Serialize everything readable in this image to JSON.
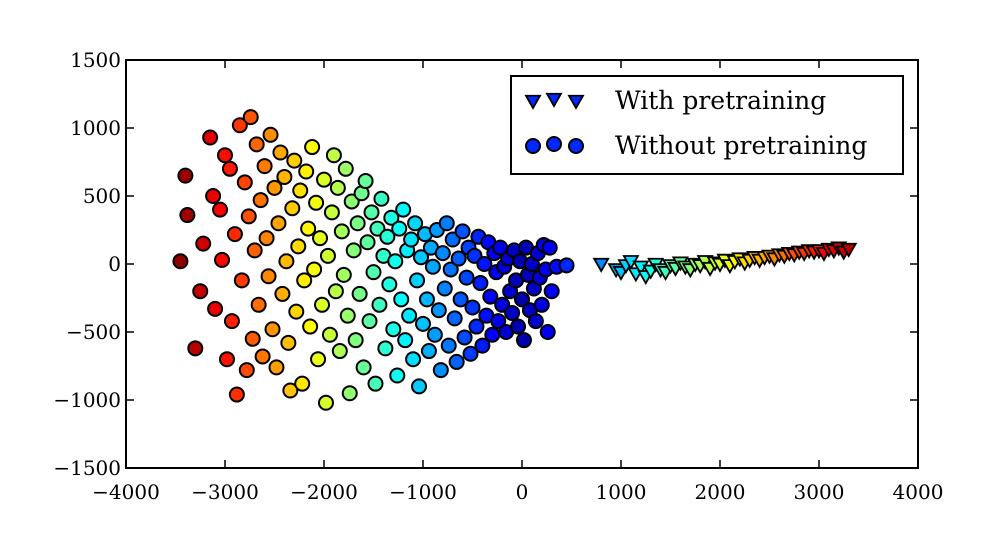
{
  "chart_data": {
    "type": "scatter",
    "title": "",
    "xlabel": "",
    "ylabel": "",
    "xlim": [
      -4000,
      4000
    ],
    "ylim": [
      -1500,
      1500
    ],
    "xticks": [
      -4000,
      -3000,
      -2000,
      -1000,
      0,
      1000,
      2000,
      3000,
      4000
    ],
    "yticks": [
      -1500,
      -1000,
      -500,
      0,
      500,
      1000,
      1500
    ],
    "xtick_labels": [
      "−4000",
      "−3000",
      "−2000",
      "−1000",
      "0",
      "1000",
      "2000",
      "3000",
      "4000"
    ],
    "ytick_labels": [
      "−1500",
      "−1000",
      "−500",
      "0",
      "500",
      "1000",
      "1500"
    ],
    "grid": false,
    "legend_position": "top-right",
    "colormap": "jet",
    "series": [
      {
        "name": "With pretraining",
        "marker": "triangle-down",
        "points": [
          [
            800,
            0
          ],
          [
            950,
            -40
          ],
          [
            1000,
            -60
          ],
          [
            1050,
            -10
          ],
          [
            1100,
            20
          ],
          [
            1150,
            -70
          ],
          [
            1200,
            -20
          ],
          [
            1250,
            -90
          ],
          [
            1300,
            -50
          ],
          [
            1350,
            0
          ],
          [
            1400,
            -40
          ],
          [
            1450,
            -60
          ],
          [
            1500,
            -10
          ],
          [
            1550,
            -30
          ],
          [
            1600,
            10
          ],
          [
            1650,
            -20
          ],
          [
            1700,
            -40
          ],
          [
            1750,
            0
          ],
          [
            1800,
            -10
          ],
          [
            1850,
            20
          ],
          [
            1900,
            -30
          ],
          [
            1950,
            10
          ],
          [
            2000,
            0
          ],
          [
            2050,
            30
          ],
          [
            2100,
            -10
          ],
          [
            2150,
            20
          ],
          [
            2200,
            40
          ],
          [
            2250,
            10
          ],
          [
            2300,
            30
          ],
          [
            2350,
            50
          ],
          [
            2400,
            30
          ],
          [
            2450,
            50
          ],
          [
            2500,
            60
          ],
          [
            2550,
            40
          ],
          [
            2600,
            70
          ],
          [
            2650,
            60
          ],
          [
            2700,
            80
          ],
          [
            2750,
            70
          ],
          [
            2800,
            90
          ],
          [
            2850,
            80
          ],
          [
            2900,
            100
          ],
          [
            2950,
            90
          ],
          [
            3000,
            100
          ],
          [
            3050,
            80
          ],
          [
            3100,
            110
          ],
          [
            3150,
            100
          ],
          [
            3200,
            120
          ],
          [
            3250,
            90
          ],
          [
            3300,
            110
          ]
        ]
      },
      {
        "name": "Without pretraining",
        "marker": "circle",
        "points": [
          [
            -3450,
            20
          ],
          [
            -3400,
            650
          ],
          [
            -3380,
            360
          ],
          [
            -3300,
            -620
          ],
          [
            -3250,
            -200
          ],
          [
            -3220,
            150
          ],
          [
            -3150,
            930
          ],
          [
            -3120,
            500
          ],
          [
            -3100,
            -330
          ],
          [
            -3050,
            400
          ],
          [
            -3030,
            30
          ],
          [
            -3000,
            800
          ],
          [
            -2980,
            -700
          ],
          [
            -2950,
            700
          ],
          [
            -2930,
            -420
          ],
          [
            -2900,
            220
          ],
          [
            -2880,
            -960
          ],
          [
            -2850,
            1020
          ],
          [
            -2830,
            -120
          ],
          [
            -2800,
            600
          ],
          [
            -2780,
            -780
          ],
          [
            -2760,
            350
          ],
          [
            -2740,
            1080
          ],
          [
            -2720,
            -550
          ],
          [
            -2700,
            100
          ],
          [
            -2680,
            880
          ],
          [
            -2660,
            -300
          ],
          [
            -2640,
            470
          ],
          [
            -2620,
            -680
          ],
          [
            -2600,
            720
          ],
          [
            -2580,
            190
          ],
          [
            -2560,
            -90
          ],
          [
            -2540,
            950
          ],
          [
            -2520,
            -480
          ],
          [
            -2500,
            560
          ],
          [
            -2480,
            -760
          ],
          [
            -2460,
            300
          ],
          [
            -2440,
            820
          ],
          [
            -2420,
            -220
          ],
          [
            -2400,
            640
          ],
          [
            -2380,
            20
          ],
          [
            -2360,
            -580
          ],
          [
            -2340,
            -930
          ],
          [
            -2320,
            410
          ],
          [
            -2300,
            760
          ],
          [
            -2280,
            -350
          ],
          [
            -2260,
            130
          ],
          [
            -2240,
            540
          ],
          [
            -2220,
            -880
          ],
          [
            -2200,
            -120
          ],
          [
            -2180,
            680
          ],
          [
            -2160,
            260
          ],
          [
            -2140,
            -460
          ],
          [
            -2120,
            860
          ],
          [
            -2100,
            -40
          ],
          [
            -2080,
            450
          ],
          [
            -2060,
            -700
          ],
          [
            -2040,
            190
          ],
          [
            -2020,
            -300
          ],
          [
            -2000,
            620
          ],
          [
            -1980,
            -1020
          ],
          [
            -1960,
            60
          ],
          [
            -1940,
            -520
          ],
          [
            -1920,
            380
          ],
          [
            -1900,
            800
          ],
          [
            -1880,
            -200
          ],
          [
            -1860,
            560
          ],
          [
            -1840,
            -640
          ],
          [
            -1820,
            240
          ],
          [
            -1800,
            -80
          ],
          [
            -1780,
            700
          ],
          [
            -1760,
            -380
          ],
          [
            -1740,
            -950
          ],
          [
            -1720,
            460
          ],
          [
            -1700,
            100
          ],
          [
            -1680,
            -560
          ],
          [
            -1660,
            300
          ],
          [
            -1640,
            -220
          ],
          [
            -1620,
            520
          ],
          [
            -1600,
            -760
          ],
          [
            -1580,
            610
          ],
          [
            -1560,
            160
          ],
          [
            -1540,
            -420
          ],
          [
            -1520,
            380
          ],
          [
            -1500,
            -60
          ],
          [
            -1480,
            -880
          ],
          [
            -1460,
            260
          ],
          [
            -1440,
            -300
          ],
          [
            -1420,
            480
          ],
          [
            -1400,
            60
          ],
          [
            -1380,
            -620
          ],
          [
            -1360,
            200
          ],
          [
            -1340,
            -150
          ],
          [
            -1320,
            340
          ],
          [
            -1300,
            -480
          ],
          [
            -1280,
            20
          ],
          [
            -1260,
            -820
          ],
          [
            -1240,
            260
          ],
          [
            -1220,
            -260
          ],
          [
            -1200,
            400
          ],
          [
            -1180,
            -560
          ],
          [
            -1160,
            100
          ],
          [
            -1140,
            -380
          ],
          [
            -1120,
            180
          ],
          [
            -1100,
            -700
          ],
          [
            -1080,
            300
          ],
          [
            -1060,
            -120
          ],
          [
            -1040,
            -900
          ],
          [
            -1020,
            50
          ],
          [
            -1000,
            -440
          ],
          [
            -980,
            220
          ],
          [
            -960,
            -260
          ],
          [
            -940,
            -640
          ],
          [
            -920,
            120
          ],
          [
            -900,
            -20
          ],
          [
            -880,
            -520
          ],
          [
            -860,
            250
          ],
          [
            -840,
            -340
          ],
          [
            -820,
            -780
          ],
          [
            -800,
            80
          ],
          [
            -780,
            -180
          ],
          [
            -760,
            300
          ],
          [
            -740,
            -600
          ],
          [
            -720,
            -40
          ],
          [
            -700,
            180
          ],
          [
            -680,
            -400
          ],
          [
            -660,
            -720
          ],
          [
            -640,
            40
          ],
          [
            -620,
            -260
          ],
          [
            -600,
            240
          ],
          [
            -580,
            -540
          ],
          [
            -560,
            -100
          ],
          [
            -540,
            120
          ],
          [
            -520,
            -660
          ],
          [
            -500,
            -320
          ],
          [
            -480,
            60
          ],
          [
            -460,
            -460
          ],
          [
            -440,
            200
          ],
          [
            -420,
            -140
          ],
          [
            -400,
            -600
          ],
          [
            -380,
            0
          ],
          [
            -360,
            -380
          ],
          [
            -340,
            160
          ],
          [
            -320,
            -240
          ],
          [
            -300,
            -520
          ],
          [
            -280,
            80
          ],
          [
            -260,
            -60
          ],
          [
            -240,
            -420
          ],
          [
            -220,
            120
          ],
          [
            -200,
            -300
          ],
          [
            -180,
            -20
          ],
          [
            -160,
            -500
          ],
          [
            -140,
            40
          ],
          [
            -120,
            -200
          ],
          [
            -100,
            -360
          ],
          [
            -80,
            100
          ],
          [
            -60,
            -120
          ],
          [
            -40,
            -460
          ],
          [
            -20,
            20
          ],
          [
            0,
            -260
          ],
          [
            20,
            -560
          ],
          [
            40,
            120
          ],
          [
            60,
            -80
          ],
          [
            80,
            -340
          ],
          [
            100,
            0
          ],
          [
            120,
            -180
          ],
          [
            140,
            -420
          ],
          [
            160,
            80
          ],
          [
            180,
            -100
          ],
          [
            200,
            -300
          ],
          [
            220,
            140
          ],
          [
            240,
            -40
          ],
          [
            260,
            -500
          ],
          [
            280,
            120
          ],
          [
            300,
            -200
          ],
          [
            350,
            -20
          ],
          [
            450,
            -10
          ]
        ]
      }
    ]
  },
  "legend": {
    "items": [
      "With pretraining",
      "Without pretraining"
    ]
  }
}
